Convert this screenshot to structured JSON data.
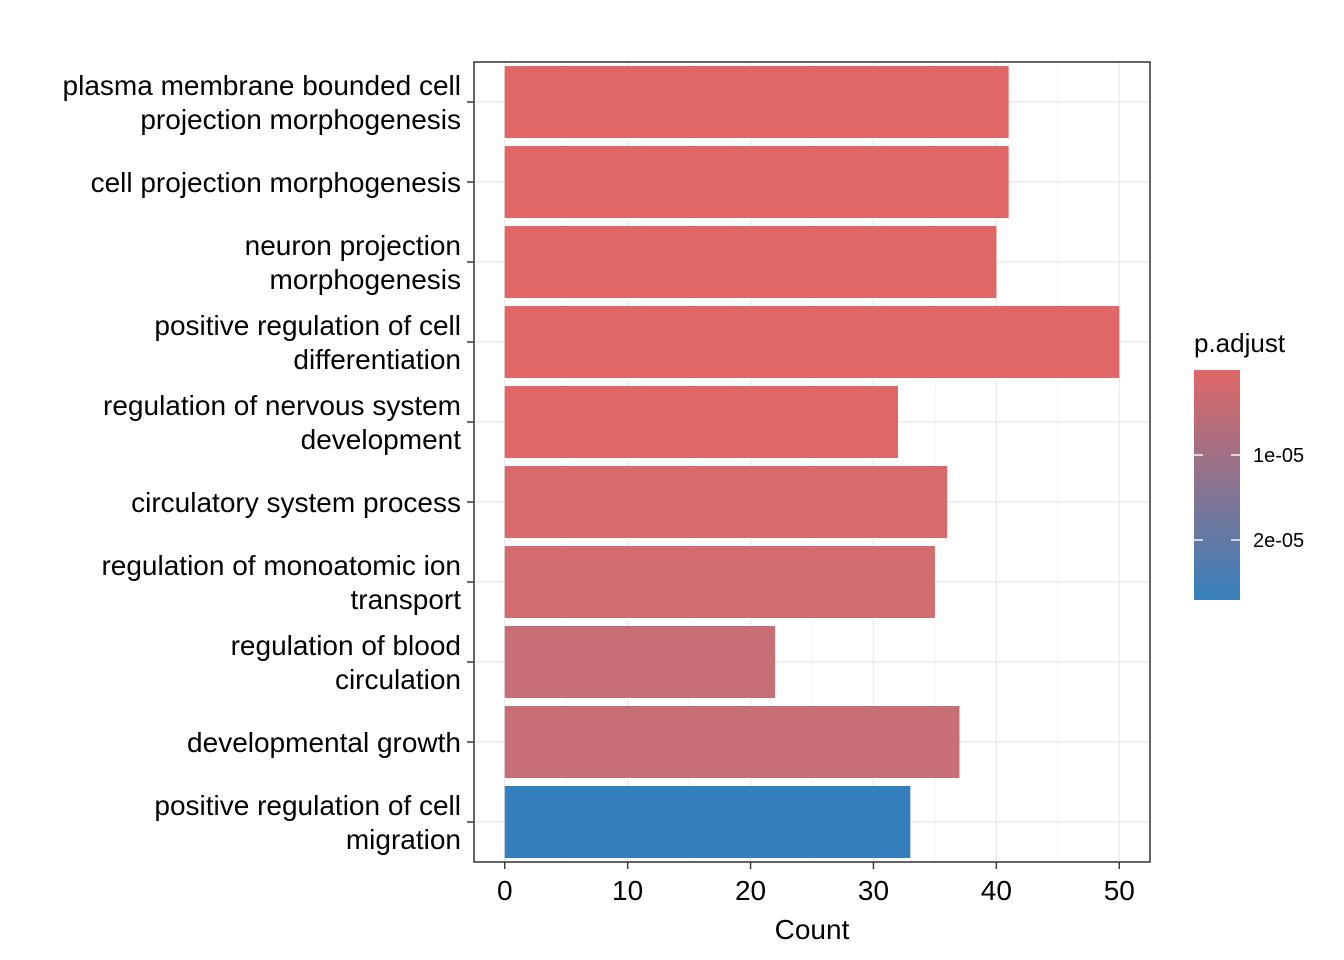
{
  "chart_data": {
    "type": "bar",
    "orientation": "horizontal",
    "categories": [
      [
        "plasma membrane bounded cell",
        "projection morphogenesis"
      ],
      [
        "cell projection morphogenesis"
      ],
      [
        "neuron projection",
        "morphogenesis"
      ],
      [
        "positive regulation of cell",
        "differentiation"
      ],
      [
        "regulation of nervous system",
        "development"
      ],
      [
        "circulatory system process"
      ],
      [
        "regulation of monoatomic ion",
        "transport"
      ],
      [
        "regulation of blood",
        "circulation"
      ],
      [
        "developmental growth"
      ],
      [
        "positive regulation of cell",
        "migration"
      ]
    ],
    "values": [
      41,
      41,
      40,
      50,
      32,
      36,
      35,
      22,
      37,
      33
    ],
    "bar_colors": [
      "#E06766",
      "#E06766",
      "#E06766",
      "#E06766",
      "#DF6767",
      "#D86A6C",
      "#D36C6F",
      "#C86E76",
      "#C86E76",
      "#3580BC"
    ],
    "xlabel": "Count",
    "ylabel": "",
    "xlim": [
      -2.5,
      52.5
    ],
    "xticks": [
      0,
      10,
      20,
      30,
      40,
      50
    ],
    "grid": true,
    "legend": {
      "title": "p.adjust",
      "position": "right",
      "gradient": [
        "#E06766",
        "#3580BC"
      ],
      "ticks": [
        "1e-05",
        "2e-05"
      ]
    }
  }
}
